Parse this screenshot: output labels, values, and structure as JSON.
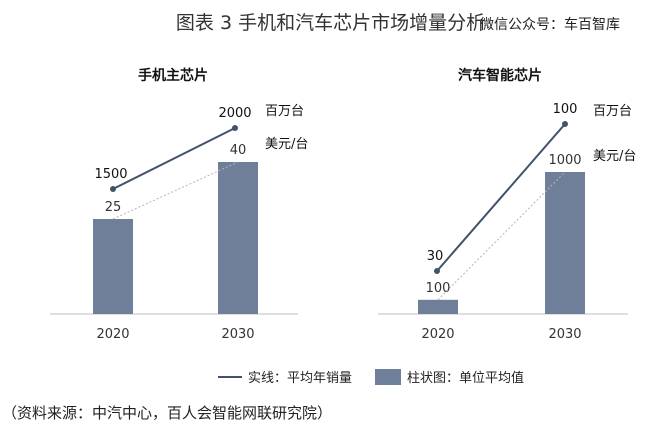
{
  "title": "图表 3  手机和汽车芯片市场增量分析",
  "watermark": "微信公众号：车百智库",
  "legend": {
    "line_label": "实线：平均年销量",
    "bar_label": "柱状图：单位平均值"
  },
  "source": "（资料来源：中汽中心，百人会智能网联研究院）",
  "colors": {
    "bar": "#707f99",
    "line": "#41536b",
    "dotted": "#b5b5b5",
    "axis": "#bfbfbf"
  },
  "chart_data": [
    {
      "type": "bar",
      "title": "手机主芯片",
      "categories": [
        "2020",
        "2030"
      ],
      "series": [
        {
          "kind": "bar",
          "values": [
            25,
            40
          ],
          "labels": [
            "25",
            "40"
          ],
          "unit": "美元/台"
        },
        {
          "kind": "line",
          "values": [
            1500,
            2000
          ],
          "labels": [
            "1500",
            "2000"
          ],
          "unit": "百万台"
        }
      ]
    },
    {
      "type": "bar",
      "title": "汽车智能芯片",
      "categories": [
        "2020",
        "2030"
      ],
      "series": [
        {
          "kind": "bar",
          "values": [
            100,
            1000
          ],
          "labels": [
            "100",
            "1000"
          ],
          "unit": "美元/台"
        },
        {
          "kind": "line",
          "values": [
            30,
            100
          ],
          "labels": [
            "30",
            "100"
          ],
          "unit": "百万台"
        }
      ]
    }
  ]
}
